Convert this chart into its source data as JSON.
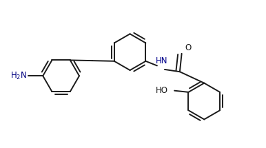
{
  "background_color": "#ffffff",
  "bond_color": "#1a1a1a",
  "h2n_color": "#000080",
  "hn_color": "#00008b",
  "lw": 1.4,
  "r": 0.48,
  "xlim": [
    -2.8,
    4.2
  ],
  "ylim": [
    -2.0,
    1.8
  ]
}
